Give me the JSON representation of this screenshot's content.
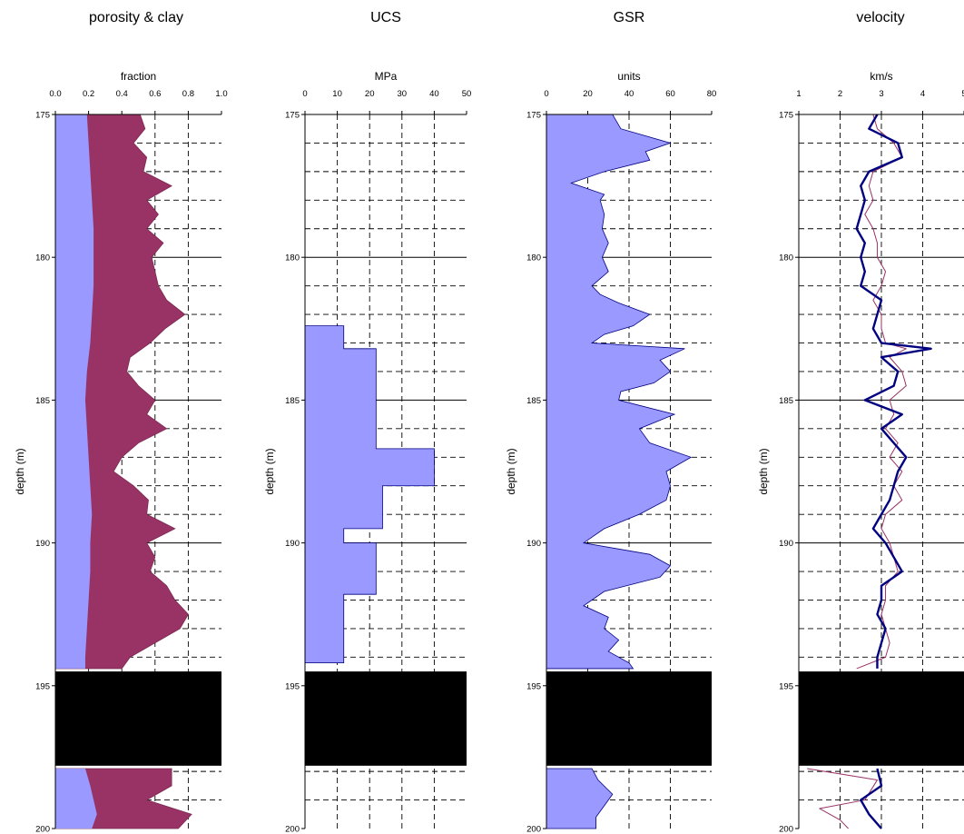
{
  "chart_data": [
    {
      "type": "area",
      "title": "porosity & clay",
      "xlabel": "fraction",
      "ylabel": "depth (m)",
      "xlim": [
        0,
        1
      ],
      "xticks": [
        "0.0",
        "0.2",
        "0.4",
        "0.6",
        "0.8",
        "1.0"
      ],
      "ylim": [
        175,
        200
      ],
      "yticks": [
        "175",
        "180",
        "185",
        "190",
        "195",
        "200"
      ],
      "gap": [
        194.5,
        197.8
      ],
      "colors": {
        "fill1": "#9999ff",
        "fill2": "#993366",
        "gap": "#000000"
      },
      "series": [
        {
          "values": [
            [
              175,
              0.19
            ],
            [
              176,
              0.2
            ],
            [
              177,
              0.21
            ],
            [
              178,
              0.22
            ],
            [
              179,
              0.23
            ],
            [
              180,
              0.23
            ],
            [
              181,
              0.23
            ],
            [
              182,
              0.22
            ],
            [
              183,
              0.21
            ],
            [
              184,
              0.19
            ],
            [
              185,
              0.18
            ],
            [
              186,
              0.19
            ],
            [
              187,
              0.2
            ],
            [
              188,
              0.21
            ],
            [
              189,
              0.22
            ],
            [
              190,
              0.21
            ],
            [
              191,
              0.21
            ],
            [
              192,
              0.2
            ],
            [
              193,
              0.19
            ],
            [
              194,
              0.18
            ],
            [
              194.4,
              0.18
            ],
            [
              197.9,
              0.18
            ],
            [
              198.5,
              0.21
            ],
            [
              199,
              0.23
            ],
            [
              199.5,
              0.25
            ],
            [
              200,
              0.22
            ]
          ]
        },
        {
          "values": [
            [
              175,
              0.51
            ],
            [
              175.5,
              0.54
            ],
            [
              176,
              0.47
            ],
            [
              176.5,
              0.55
            ],
            [
              177,
              0.53
            ],
            [
              177.5,
              0.7
            ],
            [
              178,
              0.55
            ],
            [
              178.5,
              0.62
            ],
            [
              179,
              0.55
            ],
            [
              179.5,
              0.65
            ],
            [
              180,
              0.58
            ],
            [
              180.5,
              0.6
            ],
            [
              181,
              0.62
            ],
            [
              181.5,
              0.67
            ],
            [
              182,
              0.78
            ],
            [
              182.5,
              0.66
            ],
            [
              183,
              0.57
            ],
            [
              183.5,
              0.45
            ],
            [
              184,
              0.43
            ],
            [
              184.5,
              0.5
            ],
            [
              185,
              0.6
            ],
            [
              185.5,
              0.55
            ],
            [
              186,
              0.67
            ],
            [
              186.5,
              0.5
            ],
            [
              187,
              0.4
            ],
            [
              187.5,
              0.35
            ],
            [
              188,
              0.47
            ],
            [
              188.5,
              0.56
            ],
            [
              189,
              0.55
            ],
            [
              189.5,
              0.72
            ],
            [
              190,
              0.55
            ],
            [
              190.5,
              0.6
            ],
            [
              191,
              0.57
            ],
            [
              191.5,
              0.67
            ],
            [
              192,
              0.72
            ],
            [
              192.5,
              0.8
            ],
            [
              193,
              0.75
            ],
            [
              193.5,
              0.6
            ],
            [
              194,
              0.45
            ],
            [
              194.4,
              0.4
            ],
            [
              197.9,
              0.7
            ],
            [
              198.5,
              0.7
            ],
            [
              199,
              0.55
            ],
            [
              199.5,
              0.82
            ],
            [
              200,
              0.74
            ]
          ]
        }
      ]
    },
    {
      "type": "area",
      "title": "UCS",
      "xlabel": "MPa",
      "ylabel": "depth (m)",
      "xlim": [
        0,
        50
      ],
      "xticks": [
        "0",
        "10",
        "20",
        "30",
        "40",
        "50"
      ],
      "ylim": [
        175,
        200
      ],
      "yticks": [
        "175",
        "180",
        "185",
        "190",
        "195",
        "200"
      ],
      "gap": [
        194.5,
        197.8
      ],
      "colors": {
        "fill1": "#9999ff",
        "gap": "#000000"
      },
      "series": [
        {
          "values": [
            [
              182.4,
              12
            ],
            [
              183.2,
              12
            ],
            [
              183.2,
              22
            ],
            [
              186.7,
              22
            ],
            [
              186.7,
              40
            ],
            [
              188.0,
              40
            ],
            [
              188.0,
              24
            ],
            [
              189.5,
              24
            ],
            [
              189.5,
              12
            ],
            [
              190.0,
              12
            ],
            [
              190.0,
              22
            ],
            [
              191.8,
              22
            ],
            [
              191.8,
              12
            ],
            [
              194.2,
              12
            ]
          ]
        }
      ]
    },
    {
      "type": "area",
      "title": "GSR",
      "xlabel": "units",
      "ylabel": "depth (m)",
      "xlim": [
        0,
        80
      ],
      "xticks": [
        "0",
        "20",
        "40",
        "60",
        "80"
      ],
      "ylim": [
        175,
        200
      ],
      "yticks": [
        "175",
        "180",
        "185",
        "190",
        "195",
        "200"
      ],
      "gap": [
        194.5,
        197.8
      ],
      "colors": {
        "fill1": "#9999ff",
        "gap": "#000000"
      },
      "series": [
        {
          "values": [
            [
              175,
              32
            ],
            [
              175.5,
              36
            ],
            [
              176,
              60
            ],
            [
              176.3,
              48
            ],
            [
              176.6,
              50
            ],
            [
              177,
              28
            ],
            [
              177.4,
              12
            ],
            [
              177.8,
              28
            ],
            [
              178,
              26
            ],
            [
              178.5,
              28
            ],
            [
              179,
              27
            ],
            [
              179.5,
              30
            ],
            [
              180,
              27
            ],
            [
              180.5,
              30
            ],
            [
              181,
              22
            ],
            [
              181.3,
              26
            ],
            [
              181.6,
              35
            ],
            [
              182,
              50
            ],
            [
              182.4,
              42
            ],
            [
              182.7,
              28
            ],
            [
              183,
              22
            ],
            [
              183.2,
              67
            ],
            [
              183.6,
              55
            ],
            [
              184,
              60
            ],
            [
              184.4,
              52
            ],
            [
              184.7,
              36
            ],
            [
              185,
              35
            ],
            [
              185.5,
              62
            ],
            [
              186,
              45
            ],
            [
              186.5,
              50
            ],
            [
              187,
              70
            ],
            [
              187.5,
              58
            ],
            [
              188,
              60
            ],
            [
              188.5,
              58
            ],
            [
              189,
              45
            ],
            [
              189.5,
              28
            ],
            [
              190,
              18
            ],
            [
              190.4,
              50
            ],
            [
              190.8,
              60
            ],
            [
              191.2,
              55
            ],
            [
              191.7,
              28
            ],
            [
              192.2,
              18
            ],
            [
              192.6,
              30
            ],
            [
              193,
              28
            ],
            [
              193.4,
              35
            ],
            [
              193.8,
              30
            ],
            [
              194.2,
              40
            ],
            [
              194.4,
              42
            ],
            [
              197.9,
              22
            ],
            [
              198.3,
              25
            ],
            [
              198.8,
              32
            ],
            [
              199.2,
              28
            ],
            [
              199.6,
              24
            ],
            [
              200,
              24
            ]
          ]
        }
      ]
    },
    {
      "type": "line",
      "title": "velocity",
      "xlabel": "km/s",
      "ylabel": "depth (m)",
      "xlim": [
        1,
        5
      ],
      "xticks": [
        "1",
        "2",
        "3",
        "4",
        "5"
      ],
      "ylim": [
        175,
        200
      ],
      "yticks": [
        "175",
        "180",
        "185",
        "190",
        "195",
        "200"
      ],
      "gap": [
        194.5,
        197.8
      ],
      "colors": {
        "line1": "#000080",
        "line2": "#993366",
        "gap": "#000000"
      },
      "series": [
        {
          "values": [
            [
              175,
              2.9
            ],
            [
              175.5,
              2.7
            ],
            [
              176,
              3.4
            ],
            [
              176.5,
              3.5
            ],
            [
              177,
              2.7
            ],
            [
              177.5,
              2.5
            ],
            [
              178,
              2.6
            ],
            [
              178.5,
              2.5
            ],
            [
              179,
              2.4
            ],
            [
              179.5,
              2.6
            ],
            [
              180,
              2.5
            ],
            [
              180.5,
              2.6
            ],
            [
              181,
              2.5
            ],
            [
              181.5,
              3.0
            ],
            [
              182,
              2.9
            ],
            [
              182.5,
              2.8
            ],
            [
              183,
              3.0
            ],
            [
              183.2,
              4.2
            ],
            [
              183.5,
              3.0
            ],
            [
              184,
              3.4
            ],
            [
              184.5,
              3.3
            ],
            [
              185,
              2.6
            ],
            [
              185.5,
              3.5
            ],
            [
              186,
              3.0
            ],
            [
              186.5,
              3.3
            ],
            [
              187,
              3.6
            ],
            [
              187.5,
              3.4
            ],
            [
              188,
              3.3
            ],
            [
              188.5,
              3.2
            ],
            [
              189,
              3.0
            ],
            [
              189.5,
              2.8
            ],
            [
              190,
              3.1
            ],
            [
              190.5,
              3.3
            ],
            [
              191,
              3.5
            ],
            [
              191.5,
              3.0
            ],
            [
              192,
              3.0
            ],
            [
              192.5,
              2.9
            ],
            [
              193,
              3.1
            ],
            [
              193.5,
              3.0
            ],
            [
              194,
              2.9
            ],
            [
              194.4,
              2.9
            ],
            [
              197.9,
              2.9
            ],
            [
              198.5,
              3.0
            ],
            [
              199,
              2.5
            ],
            [
              199.5,
              2.7
            ],
            [
              200,
              3.0
            ]
          ]
        },
        {
          "values": [
            [
              175,
              2.8
            ],
            [
              175.5,
              2.9
            ],
            [
              176,
              3.3
            ],
            [
              176.5,
              3.5
            ],
            [
              177,
              2.8
            ],
            [
              177.5,
              2.7
            ],
            [
              178,
              2.8
            ],
            [
              178.5,
              2.6
            ],
            [
              179,
              2.8
            ],
            [
              179.5,
              2.9
            ],
            [
              180,
              2.9
            ],
            [
              180.5,
              3.1
            ],
            [
              181,
              3.0
            ],
            [
              181.5,
              2.8
            ],
            [
              182,
              3.0
            ],
            [
              182.5,
              3.0
            ],
            [
              183,
              3.1
            ],
            [
              183.2,
              3.6
            ],
            [
              183.5,
              3.2
            ],
            [
              184,
              3.5
            ],
            [
              184.5,
              3.6
            ],
            [
              185,
              3.2
            ],
            [
              185.5,
              3.3
            ],
            [
              186,
              3.1
            ],
            [
              186.5,
              3.4
            ],
            [
              187,
              3.2
            ],
            [
              187.5,
              3.5
            ],
            [
              188,
              3.3
            ],
            [
              188.5,
              3.5
            ],
            [
              189,
              3.1
            ],
            [
              189.5,
              3.0
            ],
            [
              190,
              3.2
            ],
            [
              190.5,
              3.3
            ],
            [
              191,
              3.4
            ],
            [
              191.5,
              3.1
            ],
            [
              192,
              3.1
            ],
            [
              192.5,
              3.0
            ],
            [
              193,
              3.1
            ],
            [
              193.5,
              3.2
            ],
            [
              194,
              3.1
            ],
            [
              194.4,
              2.4
            ],
            [
              197.9,
              1.2
            ],
            [
              198.3,
              2.9
            ],
            [
              199,
              2.6
            ],
            [
              199.3,
              1.5
            ],
            [
              199.7,
              2.0
            ],
            [
              200,
              2.2
            ]
          ]
        }
      ]
    }
  ]
}
